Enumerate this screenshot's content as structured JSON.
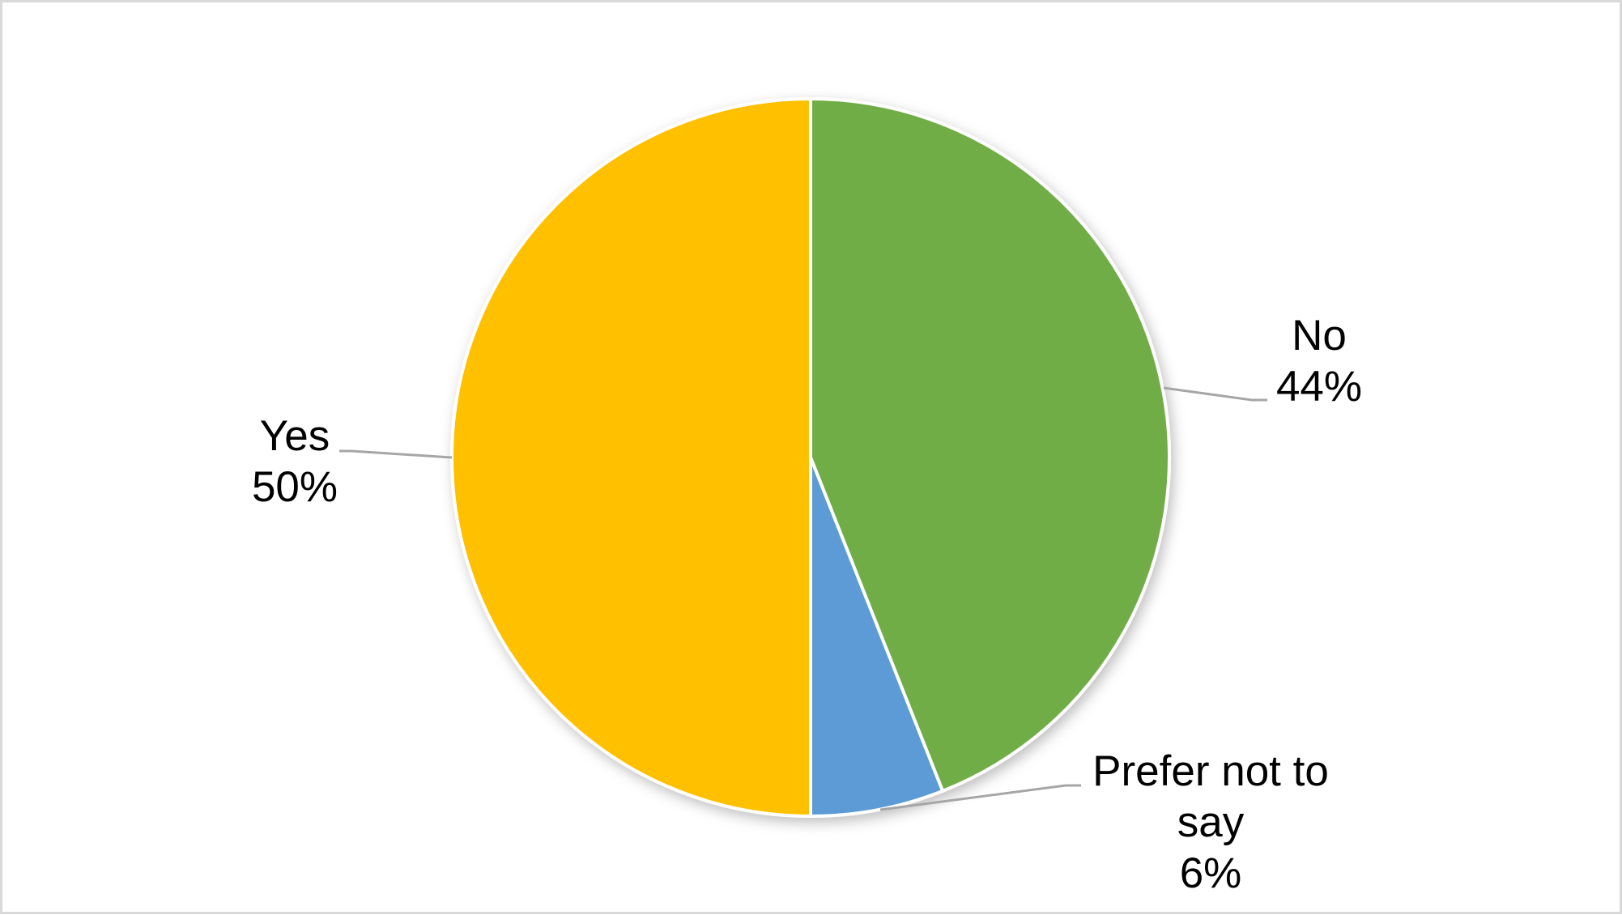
{
  "chart_data": {
    "type": "pie",
    "title": "",
    "start": "top",
    "direction": "clockwise",
    "slices": [
      {
        "label": "No",
        "percent_label": "44%",
        "value": 44,
        "color": "#70AD47",
        "label_lines": [
          "No"
        ]
      },
      {
        "label": "Prefer not to say",
        "percent_label": "6%",
        "value": 6,
        "color": "#5B9BD5",
        "label_lines": [
          "Prefer not to",
          "say"
        ]
      },
      {
        "label": "Yes",
        "percent_label": "50%",
        "value": 50,
        "color": "#FFC000",
        "label_lines": [
          "Yes"
        ]
      }
    ],
    "legend": "none",
    "data_labels": "outside with leader lines"
  }
}
